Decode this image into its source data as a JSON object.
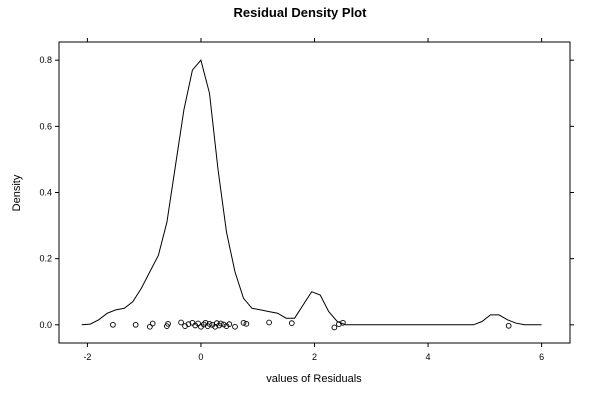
{
  "chart_data": {
    "type": "line",
    "title": "Residual Density Plot",
    "xlabel": "values of Residuals",
    "ylabel": "Density",
    "xlim": [
      -2.5,
      6.5
    ],
    "ylim": [
      -0.055,
      0.855
    ],
    "x_ticks": [
      -2,
      0,
      2,
      4,
      6
    ],
    "x_tick_labels": [
      "-2",
      "0",
      "2",
      "4",
      "6"
    ],
    "y_ticks": [
      0.0,
      0.2,
      0.4,
      0.6,
      0.8
    ],
    "y_tick_labels": [
      "0.0",
      "0.2",
      "0.4",
      "0.6",
      "0.8"
    ],
    "grid": false,
    "legend": "none",
    "series": [
      {
        "x": [
          -2.1,
          -1.95,
          -1.8,
          -1.65,
          -1.5,
          -1.35,
          -1.2,
          -1.05,
          -0.9,
          -0.75,
          -0.6,
          -0.45,
          -0.3,
          -0.15,
          0.0,
          0.15,
          0.3,
          0.45,
          0.6,
          0.75,
          0.9,
          1.05,
          1.2,
          1.35,
          1.5,
          1.65,
          1.8,
          1.95,
          2.1,
          2.25,
          2.4,
          2.55,
          2.7,
          2.85,
          3.0,
          3.2,
          3.5,
          4.0,
          4.5,
          4.8,
          4.95,
          5.1,
          5.25,
          5.4,
          5.55,
          5.7,
          5.85,
          6.0
        ],
        "y": [
          0.0,
          0.002,
          0.015,
          0.035,
          0.045,
          0.05,
          0.07,
          0.11,
          0.16,
          0.21,
          0.31,
          0.48,
          0.65,
          0.77,
          0.8,
          0.7,
          0.47,
          0.28,
          0.16,
          0.08,
          0.05,
          0.045,
          0.04,
          0.035,
          0.02,
          0.02,
          0.06,
          0.1,
          0.09,
          0.04,
          0.01,
          0.0,
          0.0,
          0.0,
          0.0,
          0.0,
          0.0,
          0.0,
          0.0,
          0.0,
          0.01,
          0.03,
          0.03,
          0.015,
          0.005,
          0.0,
          0.0,
          0.0
        ]
      }
    ],
    "rug_points": [
      {
        "x": -1.55,
        "y": 0.0
      },
      {
        "x": -1.15,
        "y": 0.0
      },
      {
        "x": -0.9,
        "y": -0.006
      },
      {
        "x": -0.85,
        "y": 0.004
      },
      {
        "x": -0.6,
        "y": -0.004
      },
      {
        "x": -0.58,
        "y": 0.003
      },
      {
        "x": -0.35,
        "y": 0.007
      },
      {
        "x": -0.28,
        "y": -0.004
      },
      {
        "x": -0.22,
        "y": 0.002
      },
      {
        "x": -0.15,
        "y": 0.006
      },
      {
        "x": -0.1,
        "y": -0.002
      },
      {
        "x": -0.05,
        "y": 0.004
      },
      {
        "x": 0.0,
        "y": -0.006
      },
      {
        "x": 0.05,
        "y": 0.001
      },
      {
        "x": 0.08,
        "y": 0.006
      },
      {
        "x": 0.12,
        "y": -0.004
      },
      {
        "x": 0.15,
        "y": 0.003
      },
      {
        "x": 0.2,
        "y": 0.0
      },
      {
        "x": 0.25,
        "y": -0.006
      },
      {
        "x": 0.28,
        "y": 0.005
      },
      {
        "x": 0.32,
        "y": -0.002
      },
      {
        "x": 0.35,
        "y": 0.004
      },
      {
        "x": 0.4,
        "y": 0.001
      },
      {
        "x": 0.45,
        "y": -0.004
      },
      {
        "x": 0.5,
        "y": 0.002
      },
      {
        "x": 0.6,
        "y": -0.006
      },
      {
        "x": 0.75,
        "y": 0.006
      },
      {
        "x": 0.8,
        "y": 0.003
      },
      {
        "x": 1.2,
        "y": 0.007
      },
      {
        "x": 1.6,
        "y": 0.005
      },
      {
        "x": 2.35,
        "y": -0.008
      },
      {
        "x": 2.43,
        "y": 0.002
      },
      {
        "x": 2.5,
        "y": 0.006
      },
      {
        "x": 5.42,
        "y": -0.003
      }
    ]
  }
}
